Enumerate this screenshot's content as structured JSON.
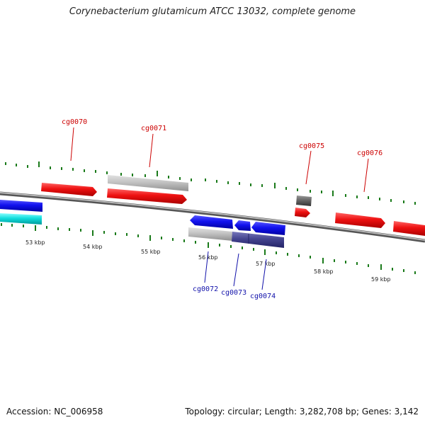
{
  "title": "Corynebacterium glutamicum ATCC 13032, complete genome",
  "footer": {
    "accession": "Accession: NC_006958",
    "topology": "Topology: circular; Length: 3,282,708 bp; Genes: 3,142"
  },
  "colors": {
    "forward": "#ee1111",
    "reverse": "#1111ee",
    "reverse_label": "#1111aa",
    "forward_label": "#cc0000",
    "cyan": "#11dddd",
    "grey": "#c2c2c2",
    "dark_grey": "#666666",
    "navy": "#44448f",
    "tick": "#1a7a1a",
    "backbone": "#8a8a8a"
  },
  "scale_labels": [
    "53 kbp",
    "54 kbp",
    "55 kbp",
    "56 kbp",
    "57 kbp",
    "58 kbp",
    "59 kbp"
  ],
  "gene_labels": {
    "forward": [
      "cg0070",
      "cg0071",
      "cg0075",
      "cg0076"
    ],
    "reverse": [
      "cg0072",
      "cg0073",
      "cg0074"
    ]
  }
}
